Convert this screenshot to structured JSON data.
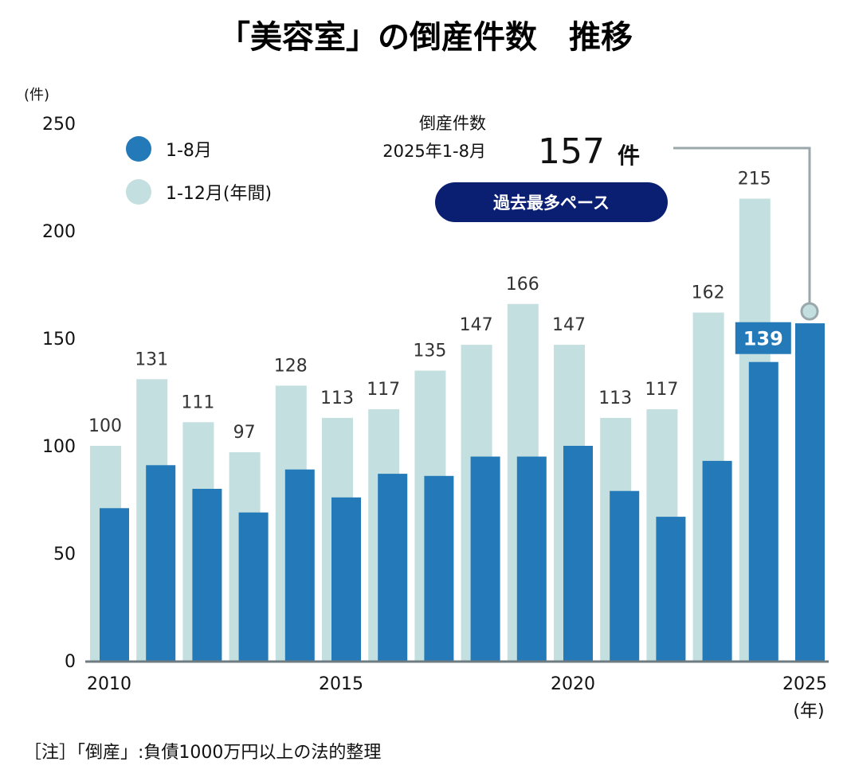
{
  "colors": {
    "jan_aug": "#2479b8",
    "annual": "#c3dfe0",
    "axis": "#6e7b80",
    "badge": "#0b1f72",
    "leader": "#9aa8ab"
  },
  "chart_data": {
    "type": "bar",
    "title": "「美容室」の倒産件数　推移",
    "xlabel": "(年)",
    "ylabel": "(件)",
    "ylim": [
      0,
      250
    ],
    "yticks": [
      0,
      50,
      100,
      150,
      200,
      250
    ],
    "xticks": [
      "2010",
      "2015",
      "2020",
      "2025"
    ],
    "categories": [
      "2010",
      "2011",
      "2012",
      "2013",
      "2014",
      "2015",
      "2016",
      "2017",
      "2018",
      "2019",
      "2020",
      "2021",
      "2022",
      "2023",
      "2024",
      "2025"
    ],
    "series": [
      {
        "name": "1-8月",
        "values": [
          71,
          91,
          80,
          69,
          89,
          76,
          87,
          86,
          95,
          95,
          100,
          79,
          67,
          93,
          139,
          157
        ],
        "labeled": {
          "2024": "139"
        }
      },
      {
        "name": "1-12月(年間)",
        "values": [
          100,
          131,
          111,
          97,
          128,
          113,
          117,
          135,
          147,
          166,
          147,
          113,
          117,
          162,
          215,
          null
        ],
        "labels": [
          "100",
          "131",
          "111",
          "97",
          "128",
          "113",
          "117",
          "135",
          "147",
          "166",
          "147",
          "113",
          "117",
          "162",
          "215",
          ""
        ]
      }
    ],
    "legend": [
      "1-8月",
      "1-12月(年間)"
    ],
    "legend_position": "top-left",
    "grid": false,
    "annotation": {
      "line1": "倒産件数",
      "line2": "2025年1-8月",
      "value": "157",
      "unit": "件",
      "badge": "過去最多ペース"
    },
    "note": "［注］「倒産」:負債1000万円以上の法的整理"
  }
}
